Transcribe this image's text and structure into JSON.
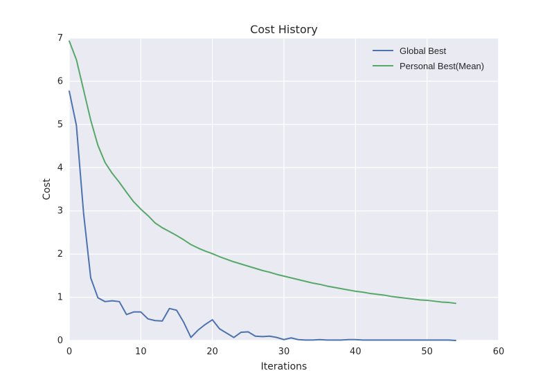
{
  "chart_data": {
    "type": "line",
    "title": "Cost History",
    "xlabel": "Iterations",
    "ylabel": "Cost",
    "xlim": [
      0,
      60
    ],
    "ylim": [
      0,
      7
    ],
    "xticks": [
      0,
      10,
      20,
      30,
      40,
      50,
      60
    ],
    "yticks": [
      0,
      1,
      2,
      3,
      4,
      5,
      6,
      7
    ],
    "grid": true,
    "legend_position": "top-right",
    "background_color": "#eaeaf2",
    "grid_color": "#ffffff",
    "series": [
      {
        "name": "Global Best",
        "color": "#4c72b0",
        "x": [
          0,
          1,
          2,
          3,
          4,
          5,
          6,
          7,
          8,
          9,
          10,
          11,
          12,
          13,
          14,
          15,
          16,
          17,
          18,
          19,
          20,
          21,
          22,
          23,
          24,
          25,
          26,
          27,
          28,
          29,
          30,
          31,
          32,
          33,
          34,
          35,
          36,
          37,
          38,
          39,
          40,
          41,
          42,
          43,
          44,
          45,
          46,
          47,
          48,
          49,
          50,
          51,
          52,
          53,
          54
        ],
        "y": [
          5.77,
          4.98,
          2.95,
          1.45,
          0.99,
          0.9,
          0.92,
          0.9,
          0.6,
          0.66,
          0.66,
          0.5,
          0.46,
          0.45,
          0.74,
          0.7,
          0.42,
          0.07,
          0.24,
          0.37,
          0.48,
          0.27,
          0.17,
          0.07,
          0.19,
          0.2,
          0.1,
          0.09,
          0.1,
          0.07,
          0.02,
          0.06,
          0.02,
          0.01,
          0.01,
          0.02,
          0.01,
          0.01,
          0.01,
          0.02,
          0.02,
          0.01,
          0.01,
          0.01,
          0.01,
          0.01,
          0.01,
          0.01,
          0.01,
          0.01,
          0.01,
          0.01,
          0.01,
          0.01,
          0.0
        ]
      },
      {
        "name": "Personal Best(Mean)",
        "color": "#55a868",
        "x": [
          0,
          1,
          2,
          3,
          4,
          5,
          6,
          7,
          8,
          9,
          10,
          11,
          12,
          13,
          14,
          15,
          16,
          17,
          18,
          19,
          20,
          21,
          22,
          23,
          24,
          25,
          26,
          27,
          28,
          29,
          30,
          31,
          32,
          33,
          34,
          35,
          36,
          37,
          38,
          39,
          40,
          41,
          42,
          43,
          44,
          45,
          46,
          47,
          48,
          49,
          50,
          51,
          52,
          53,
          54
        ],
        "y": [
          6.93,
          6.5,
          5.8,
          5.1,
          4.52,
          4.12,
          3.87,
          3.66,
          3.43,
          3.21,
          3.04,
          2.89,
          2.72,
          2.61,
          2.52,
          2.43,
          2.33,
          2.22,
          2.14,
          2.07,
          2.01,
          1.94,
          1.88,
          1.82,
          1.77,
          1.72,
          1.67,
          1.62,
          1.58,
          1.53,
          1.49,
          1.45,
          1.41,
          1.37,
          1.33,
          1.3,
          1.26,
          1.23,
          1.2,
          1.17,
          1.14,
          1.12,
          1.09,
          1.07,
          1.05,
          1.02,
          1.0,
          0.98,
          0.96,
          0.94,
          0.93,
          0.91,
          0.89,
          0.88,
          0.86
        ]
      }
    ]
  }
}
